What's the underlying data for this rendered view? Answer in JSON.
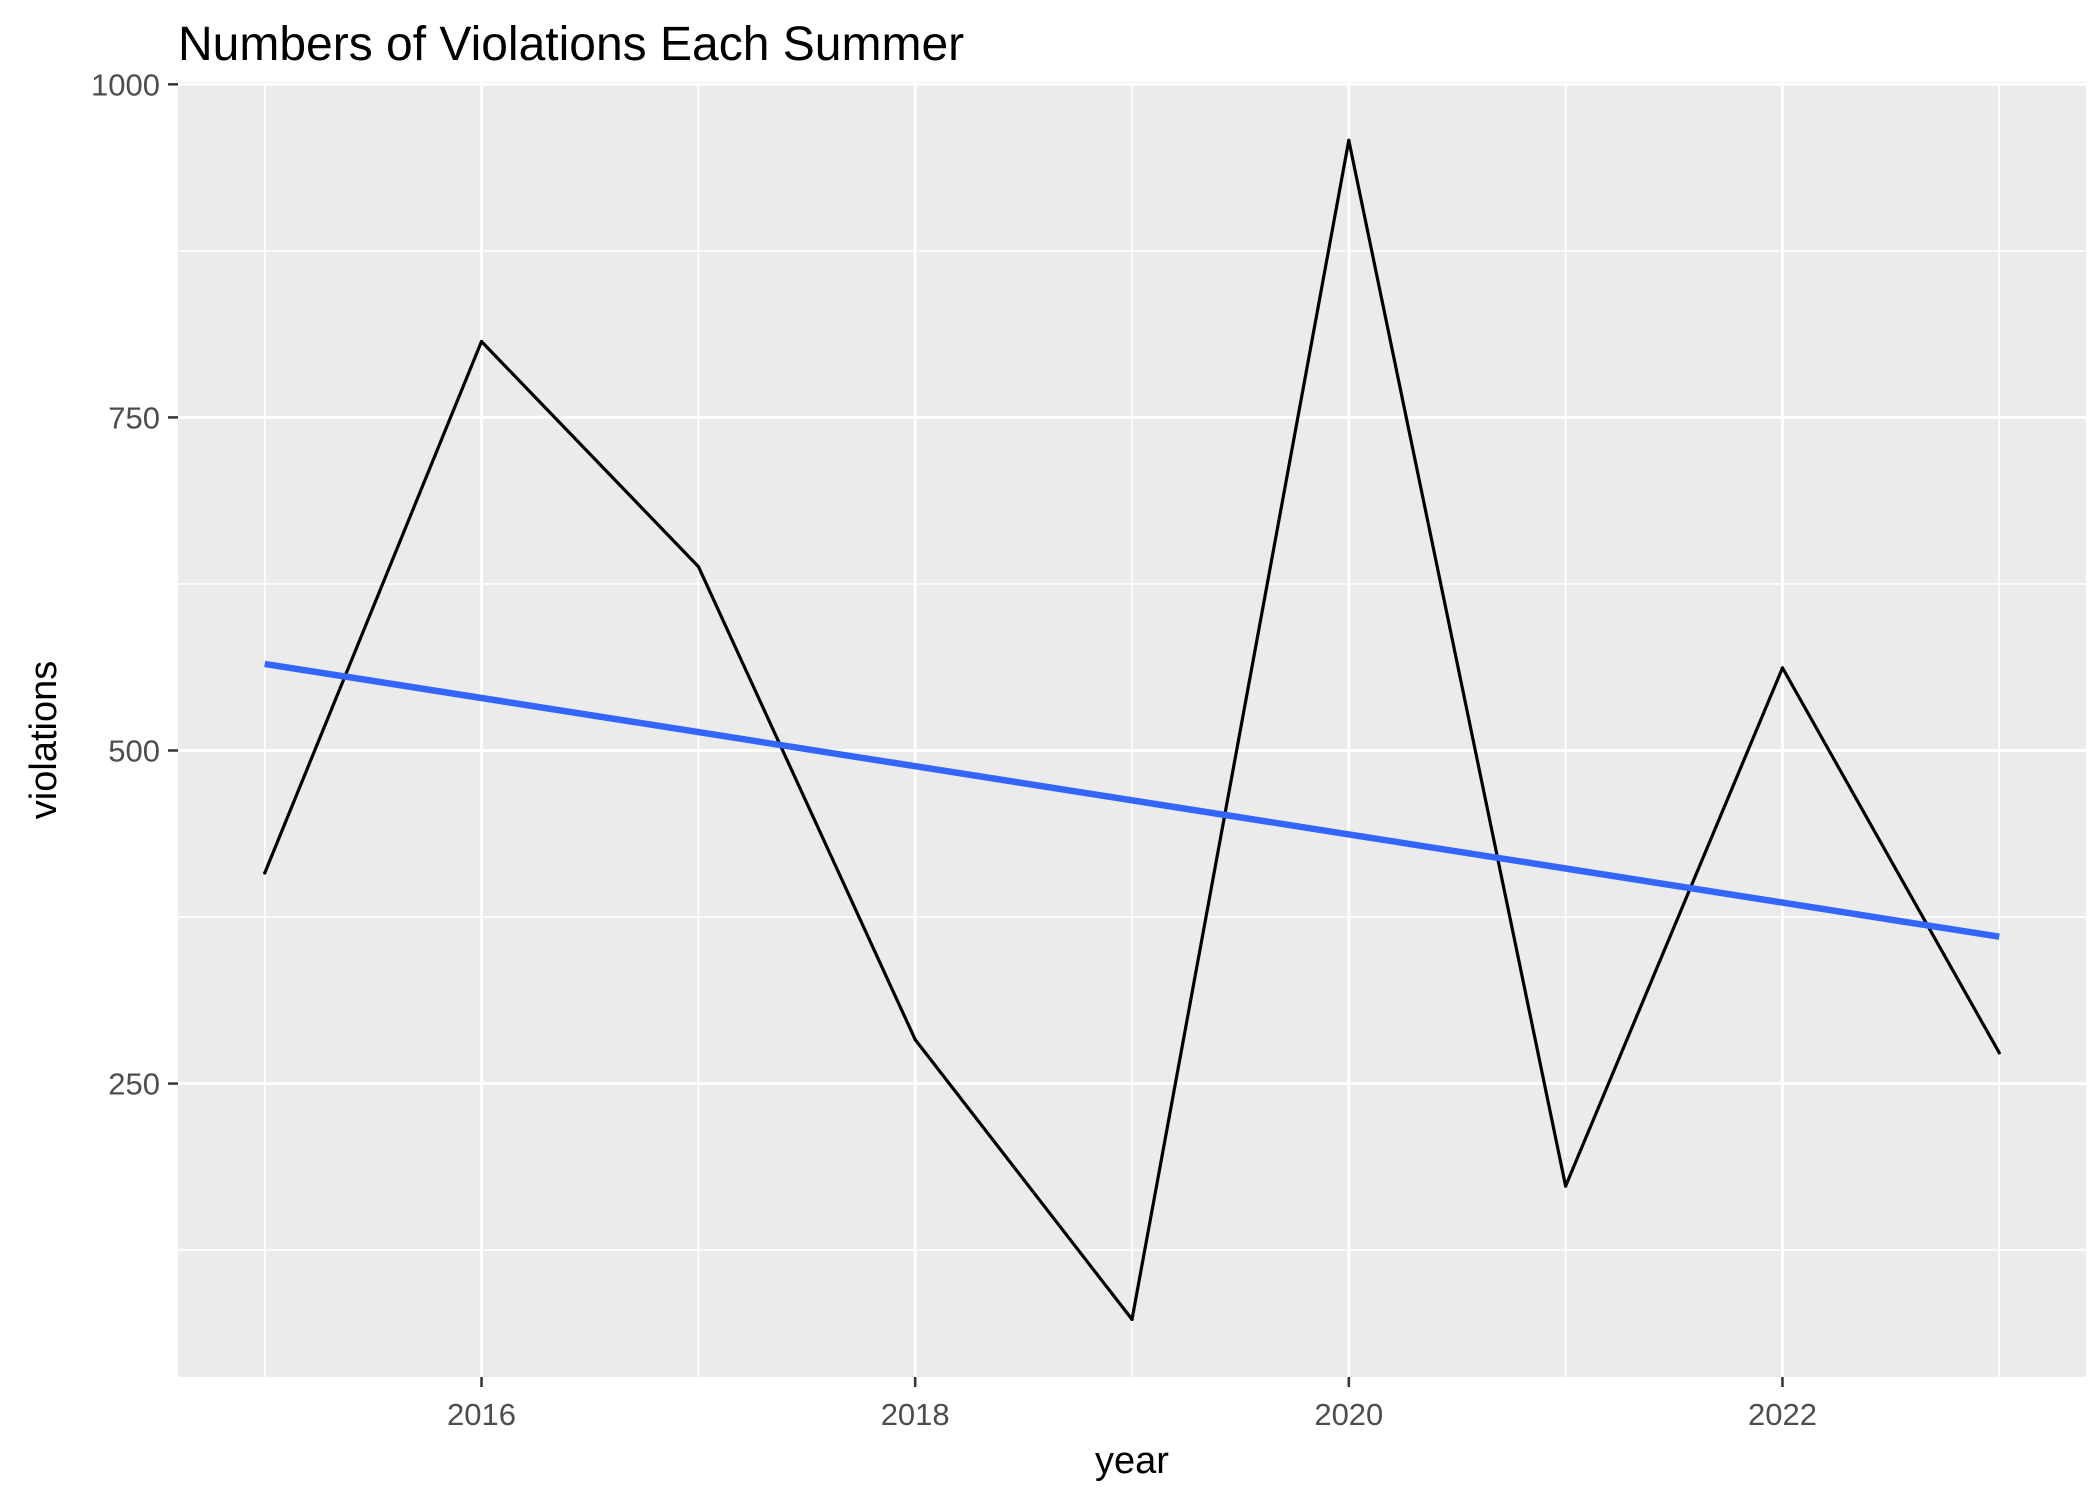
{
  "chart_data": {
    "type": "line",
    "title": "Numbers of Violations Each Summer",
    "xlabel": "year",
    "ylabel": "violations",
    "x": [
      2015,
      2016,
      2017,
      2018,
      2019,
      2020,
      2021,
      2022,
      2023
    ],
    "series": [
      {
        "values": [
          408,
          807,
          638,
          283,
          73,
          958,
          173,
          562,
          273
        ],
        "color": "#000000"
      },
      {
        "type": "linear-trend",
        "values": [
          565,
          539.4,
          513.8,
          488.2,
          462.6,
          437,
          411.4,
          385.8,
          360.2
        ],
        "color": "#3366ff"
      }
    ],
    "xlim": [
      2014.6,
      2023.4
    ],
    "ylim": [
      29.75,
      1001.75
    ],
    "x_ticks": [
      "2016",
      "2018",
      "2020",
      "2022"
    ],
    "x_tick_values": [
      2016,
      2018,
      2020,
      2022
    ],
    "x_minor_ticks": [
      2015,
      2017,
      2019,
      2021,
      2023
    ],
    "y_ticks": [
      "250",
      "500",
      "750",
      "1000"
    ],
    "y_tick_values": [
      250,
      500,
      750,
      1000
    ],
    "y_minor_ticks": [
      125,
      375,
      625,
      875
    ],
    "grid": true,
    "legend": "none",
    "colors": {
      "panel_background": "#ebebeb",
      "grid": "#ffffff",
      "line": "#000000",
      "trend": "#3366ff"
    }
  }
}
